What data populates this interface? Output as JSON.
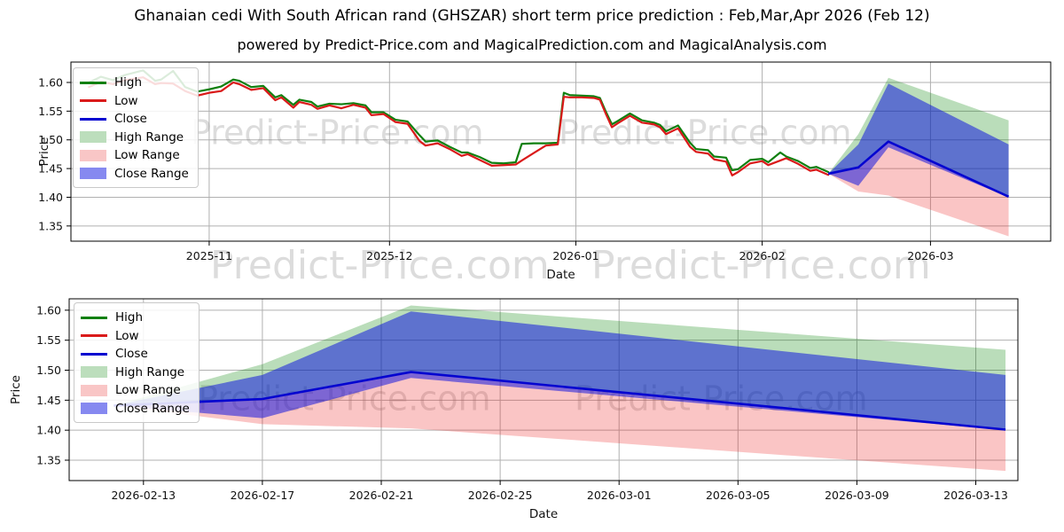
{
  "title": "Ghanaian cedi With South African rand (GHSZAR) short term price prediction : Feb,Mar,Apr 2026 (Feb 12)",
  "subtitle": "powered by Predict-Price.com and MagicalPrediction.com and MagicalAnalysis.com",
  "watermark": {
    "text": "Predict-Price.com"
  },
  "colors": {
    "high_line": "#108010",
    "low_line": "#da1a1a",
    "close_line": "#0404d0",
    "high_fill": "rgba(0,128,0,0.27)",
    "low_fill": "rgba(235,25,25,0.25)",
    "close_fill": "rgba(10,15,225,0.52)",
    "grid": "#b0b0b0",
    "spine": "#000000",
    "text": "#111111",
    "watermark": "rgba(128,128,128,0.28)"
  },
  "legend": {
    "items": [
      {
        "label": "High",
        "kind": "line",
        "color": "#108010"
      },
      {
        "label": "Low",
        "kind": "line",
        "color": "#da1a1a"
      },
      {
        "label": "Close",
        "kind": "line",
        "color": "#0404d0"
      },
      {
        "label": "High Range",
        "kind": "patch",
        "color": "#bcdebc"
      },
      {
        "label": "Low Range",
        "kind": "patch",
        "color": "#f9c6c6"
      },
      {
        "label": "Close Range",
        "kind": "patch",
        "color": "#8689f0"
      }
    ]
  },
  "chart_data": [
    {
      "type": "line",
      "title": "",
      "xlabel": "Date",
      "ylabel": "Price",
      "grid": true,
      "legend_position": "upper-left",
      "ylim": [
        1.3235,
        1.6355
      ],
      "xlim": [
        "2025-10-09",
        "2026-03-21"
      ],
      "yticks": [
        {
          "v": 1.35,
          "label": "1.35"
        },
        {
          "v": 1.4,
          "label": "1.40"
        },
        {
          "v": 1.45,
          "label": "1.45"
        },
        {
          "v": 1.5,
          "label": "1.50"
        },
        {
          "v": 1.55,
          "label": "1.55"
        },
        {
          "v": 1.6,
          "label": "1.60"
        }
      ],
      "xticks": [
        {
          "date": "2025-11-01",
          "label": "2025-11"
        },
        {
          "date": "2025-12-01",
          "label": "2025-12"
        },
        {
          "date": "2026-01-01",
          "label": "2026-01"
        },
        {
          "date": "2026-02-01",
          "label": "2026-02"
        },
        {
          "date": "2026-03-01",
          "label": "2026-03"
        }
      ],
      "series": {
        "history": {
          "dates": [
            "2025-10-12",
            "2025-10-14",
            "2025-10-16",
            "2025-10-18",
            "2025-10-21",
            "2025-10-23",
            "2025-10-24",
            "2025-10-26",
            "2025-10-28",
            "2025-10-30",
            "2025-11-01",
            "2025-11-03",
            "2025-11-05",
            "2025-11-06",
            "2025-11-08",
            "2025-11-10",
            "2025-11-12",
            "2025-11-13",
            "2025-11-15",
            "2025-11-16",
            "2025-11-18",
            "2025-11-19",
            "2025-11-21",
            "2025-11-23",
            "2025-11-25",
            "2025-11-27",
            "2025-11-28",
            "2025-11-30",
            "2025-12-02",
            "2025-12-04",
            "2025-12-06",
            "2025-12-07",
            "2025-12-09",
            "2025-12-11",
            "2025-12-13",
            "2025-12-14",
            "2025-12-16",
            "2025-12-18",
            "2025-12-20",
            "2025-12-22",
            "2025-12-23",
            "2025-12-25",
            "2025-12-27",
            "2025-12-29",
            "2025-12-30",
            "2025-12-31",
            "2026-01-02",
            "2026-01-04",
            "2026-01-05",
            "2026-01-06",
            "2026-01-07",
            "2026-01-08",
            "2026-01-10",
            "2026-01-12",
            "2026-01-14",
            "2026-01-15",
            "2026-01-16",
            "2026-01-18",
            "2026-01-20",
            "2026-01-21",
            "2026-01-23",
            "2026-01-24",
            "2026-01-26",
            "2026-01-27",
            "2026-01-28",
            "2026-01-30",
            "2026-02-01",
            "2026-02-02",
            "2026-02-04",
            "2026-02-05",
            "2026-02-07",
            "2026-02-09",
            "2026-02-10",
            "2026-02-12"
          ],
          "low": [
            1.592,
            1.601,
            1.597,
            1.604,
            1.609,
            1.597,
            1.599,
            1.598,
            1.585,
            1.577,
            1.582,
            1.585,
            1.6,
            1.597,
            1.587,
            1.59,
            1.569,
            1.574,
            1.556,
            1.566,
            1.561,
            1.554,
            1.56,
            1.555,
            1.561,
            1.556,
            1.543,
            1.545,
            1.531,
            1.528,
            1.498,
            1.49,
            1.494,
            1.484,
            1.472,
            1.475,
            1.465,
            1.455,
            1.456,
            1.457,
            1.464,
            1.477,
            1.49,
            1.492,
            1.575,
            1.574,
            1.574,
            1.573,
            1.57,
            1.545,
            1.522,
            1.529,
            1.542,
            1.53,
            1.527,
            1.522,
            1.51,
            1.52,
            1.488,
            1.479,
            1.476,
            1.466,
            1.462,
            1.438,
            1.444,
            1.459,
            1.463,
            1.456,
            1.464,
            1.468,
            1.458,
            1.446,
            1.448,
            1.439
          ],
          "high": [
            1.6,
            1.61,
            1.604,
            1.613,
            1.621,
            1.603,
            1.605,
            1.62,
            1.592,
            1.584,
            1.588,
            1.593,
            1.605,
            1.603,
            1.592,
            1.594,
            1.574,
            1.578,
            1.561,
            1.57,
            1.566,
            1.558,
            1.563,
            1.562,
            1.564,
            1.56,
            1.548,
            1.548,
            1.535,
            1.532,
            1.508,
            1.497,
            1.499,
            1.488,
            1.478,
            1.478,
            1.47,
            1.46,
            1.459,
            1.461,
            1.493,
            1.494,
            1.494,
            1.495,
            1.582,
            1.578,
            1.577,
            1.576,
            1.573,
            1.549,
            1.527,
            1.533,
            1.546,
            1.534,
            1.53,
            1.526,
            1.515,
            1.525,
            1.495,
            1.484,
            1.482,
            1.471,
            1.469,
            1.447,
            1.449,
            1.465,
            1.467,
            1.461,
            1.478,
            1.471,
            1.463,
            1.451,
            1.453,
            1.444
          ]
        },
        "forecast": {
          "dates": [
            "2026-02-12",
            "2026-02-17",
            "2026-02-22",
            "2026-03-14"
          ],
          "close": [
            1.441,
            1.452,
            1.497,
            1.401
          ],
          "close_upper": [
            1.441,
            1.492,
            1.598,
            1.492
          ],
          "close_lower": [
            1.441,
            1.42,
            1.487,
            1.4
          ],
          "high_upper": [
            1.441,
            1.51,
            1.608,
            1.534
          ],
          "low_lower": [
            1.441,
            1.41,
            1.403,
            1.332
          ]
        }
      }
    },
    {
      "type": "line",
      "title": "",
      "xlabel": "Date",
      "ylabel": "Price",
      "grid": true,
      "legend_position": "upper-left",
      "ylim": [
        1.316,
        1.619
      ],
      "xlim": [
        "2026-02-10T12:00:00Z",
        "2026-03-14T10:00:00Z"
      ],
      "yticks": [
        {
          "v": 1.35,
          "label": "1.35"
        },
        {
          "v": 1.4,
          "label": "1.40"
        },
        {
          "v": 1.45,
          "label": "1.45"
        },
        {
          "v": 1.5,
          "label": "1.50"
        },
        {
          "v": 1.55,
          "label": "1.55"
        },
        {
          "v": 1.6,
          "label": "1.60"
        }
      ],
      "xticks": [
        {
          "date": "2026-02-13",
          "label": "2026-02-13"
        },
        {
          "date": "2026-02-17",
          "label": "2026-02-17"
        },
        {
          "date": "2026-02-21",
          "label": "2026-02-21"
        },
        {
          "date": "2026-02-25",
          "label": "2026-02-25"
        },
        {
          "date": "2026-03-01",
          "label": "2026-03-01"
        },
        {
          "date": "2026-03-05",
          "label": "2026-03-05"
        },
        {
          "date": "2026-03-09",
          "label": "2026-03-09"
        },
        {
          "date": "2026-03-13",
          "label": "2026-03-13"
        }
      ],
      "series": {
        "forecast": {
          "dates": [
            "2026-02-12",
            "2026-02-17",
            "2026-02-22",
            "2026-03-14"
          ],
          "close": [
            1.441,
            1.452,
            1.497,
            1.401
          ],
          "close_upper": [
            1.441,
            1.492,
            1.598,
            1.492
          ],
          "close_lower": [
            1.441,
            1.42,
            1.487,
            1.4
          ],
          "high_upper": [
            1.441,
            1.51,
            1.608,
            1.534
          ],
          "low_lower": [
            1.441,
            1.41,
            1.403,
            1.332
          ]
        }
      }
    }
  ]
}
